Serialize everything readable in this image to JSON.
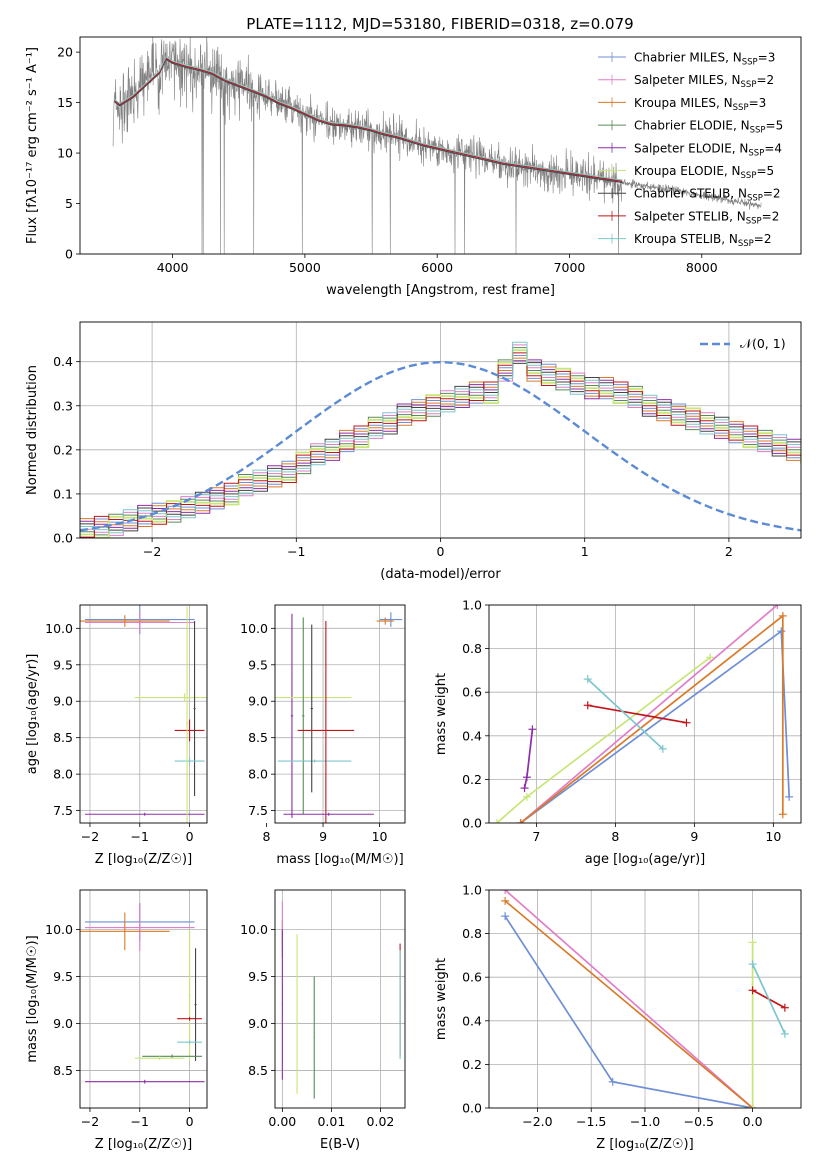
{
  "figure": {
    "title": "PLATE=1112, MJD=53180, FIBERID=0318, z=0.079"
  },
  "series_names": [
    {
      "name": "Chabrier MILES",
      "n": "3",
      "color": "#6f8fd4"
    },
    {
      "name": "Salpeter MILES",
      "n": "2",
      "color": "#e07ec9"
    },
    {
      "name": "Kroupa MILES",
      "n": "3",
      "color": "#d97a28"
    },
    {
      "name": "Chabrier ELODIE",
      "n": "5",
      "color": "#5a8a5a"
    },
    {
      "name": "Salpeter ELODIE",
      "n": "4",
      "color": "#8d2ea8"
    },
    {
      "name": "Kroupa ELODIE",
      "n": "5",
      "color": "#c8e678"
    },
    {
      "name": "Chabrier STELIB",
      "n": "2",
      "color": "#444444"
    },
    {
      "name": "Salpeter STELIB",
      "n": "2",
      "color": "#c0161c"
    },
    {
      "name": "Kroupa STELIB",
      "n": "2",
      "color": "#7cc6cc"
    }
  ],
  "chart_data": [
    {
      "id": "spectrum",
      "type": "line",
      "title": "PLATE=1112, MJD=53180, FIBERID=0318, z=0.079",
      "xlabel": "wavelength [Angstrom, rest frame]",
      "ylabel": "Flux [fλ10⁻¹⁷ erg cm⁻² s⁻¹ A⁻¹]",
      "xlim": [
        3300,
        8750
      ],
      "ylim": [
        0,
        21.5
      ],
      "xticks": [
        4000,
        5000,
        6000,
        7000,
        8000
      ],
      "yticks": [
        0,
        5,
        10,
        15,
        20
      ],
      "data_color": "#808080",
      "data_envelope": [
        [
          3550,
          14.8
        ],
        [
          3600,
          14.5
        ],
        [
          3700,
          15.8
        ],
        [
          3800,
          17.2
        ],
        [
          3900,
          18.2
        ],
        [
          4000,
          19.0
        ],
        [
          4100,
          18.4
        ],
        [
          4200,
          18.1
        ],
        [
          4300,
          17.6
        ],
        [
          4400,
          17.0
        ],
        [
          4500,
          16.5
        ],
        [
          4600,
          16.1
        ],
        [
          4700,
          15.6
        ],
        [
          4800,
          15.0
        ],
        [
          4900,
          14.4
        ],
        [
          5000,
          13.8
        ],
        [
          5100,
          13.2
        ],
        [
          5200,
          12.8
        ],
        [
          5300,
          12.7
        ],
        [
          5400,
          12.5
        ],
        [
          5500,
          12.2
        ],
        [
          5600,
          11.9
        ],
        [
          5700,
          11.7
        ],
        [
          5800,
          11.2
        ],
        [
          5900,
          10.8
        ],
        [
          6000,
          10.4
        ],
        [
          6100,
          10.1
        ],
        [
          6200,
          9.9
        ],
        [
          6300,
          9.6
        ],
        [
          6400,
          9.3
        ],
        [
          6500,
          9.0
        ],
        [
          6600,
          8.8
        ],
        [
          6700,
          8.6
        ],
        [
          6800,
          8.4
        ],
        [
          6900,
          8.1
        ],
        [
          7000,
          7.9
        ],
        [
          7100,
          7.7
        ],
        [
          7200,
          7.5
        ],
        [
          7300,
          7.3
        ],
        [
          7400,
          7.1
        ],
        [
          7500,
          6.9
        ],
        [
          7600,
          6.7
        ],
        [
          7700,
          6.5
        ],
        [
          7800,
          6.3
        ],
        [
          7900,
          6.0
        ],
        [
          8000,
          5.8
        ],
        [
          8100,
          5.6
        ],
        [
          8200,
          5.4
        ],
        [
          8300,
          5.1
        ],
        [
          8400,
          4.9
        ],
        [
          8450,
          4.8
        ]
      ],
      "model_fit": [
        [
          3560,
          15.2
        ],
        [
          3600,
          14.8
        ],
        [
          3700,
          15.6
        ],
        [
          3800,
          16.8
        ],
        [
          3900,
          18.0
        ],
        [
          3950,
          19.4
        ],
        [
          4000,
          19.0
        ],
        [
          4100,
          18.6
        ],
        [
          4200,
          18.3
        ],
        [
          4300,
          17.9
        ],
        [
          4400,
          17.2
        ],
        [
          4500,
          16.7
        ],
        [
          4600,
          16.2
        ],
        [
          4700,
          15.7
        ],
        [
          4800,
          15.0
        ],
        [
          4900,
          14.5
        ],
        [
          5000,
          13.9
        ],
        [
          5100,
          13.3
        ],
        [
          5200,
          12.9
        ],
        [
          5300,
          12.8
        ],
        [
          5400,
          12.6
        ],
        [
          5500,
          12.3
        ],
        [
          5600,
          11.9
        ],
        [
          5700,
          11.6
        ],
        [
          5800,
          11.2
        ],
        [
          5900,
          10.8
        ],
        [
          6000,
          10.5
        ],
        [
          6100,
          10.2
        ],
        [
          6200,
          9.9
        ],
        [
          6300,
          9.6
        ],
        [
          6400,
          9.3
        ],
        [
          6500,
          9.0
        ],
        [
          6600,
          8.8
        ],
        [
          6700,
          8.6
        ],
        [
          6800,
          8.4
        ],
        [
          6900,
          8.2
        ],
        [
          7000,
          8.0
        ],
        [
          7100,
          7.8
        ],
        [
          7200,
          7.6
        ],
        [
          7300,
          7.4
        ],
        [
          7400,
          7.2
        ]
      ],
      "legend_position": "right"
    },
    {
      "id": "residuals",
      "type": "histogram",
      "xlabel": "(data-model)/error",
      "ylabel": "Normed distribution",
      "xlim": [
        -2.5,
        2.5
      ],
      "ylim": [
        0,
        0.49
      ],
      "xticks": [
        -2,
        -1,
        0,
        1,
        2
      ],
      "yticks": [
        0.0,
        0.1,
        0.2,
        0.3,
        0.4
      ],
      "bin_edges_start": -2.5,
      "bin_width": 0.1,
      "bin_values": [
        0.02,
        0.025,
        0.03,
        0.04,
        0.05,
        0.055,
        0.06,
        0.07,
        0.08,
        0.09,
        0.1,
        0.12,
        0.13,
        0.14,
        0.15,
        0.17,
        0.19,
        0.2,
        0.22,
        0.23,
        0.25,
        0.26,
        0.28,
        0.29,
        0.3,
        0.31,
        0.32,
        0.33,
        0.33,
        0.38,
        0.42,
        0.38,
        0.37,
        0.36,
        0.35,
        0.34,
        0.34,
        0.33,
        0.32,
        0.3,
        0.29,
        0.28,
        0.27,
        0.26,
        0.25,
        0.24,
        0.23,
        0.22,
        0.21,
        0.2,
        0.19,
        0.17,
        0.16,
        0.15,
        0.14,
        0.12,
        0.11,
        0.1,
        0.09,
        0.08,
        0.07,
        0.06,
        0.05,
        0.05,
        0.04,
        0.03,
        0.03,
        0.03,
        0.02,
        0.02
      ],
      "gaussian_label": "𝒩(0, 1)",
      "gaussian_color": "#5b8bd6",
      "legend_position": "upper right"
    },
    {
      "id": "age_vs_z",
      "type": "errorbar",
      "xlabel": "Z [log₁₀(Z/Z☉)]",
      "ylabel": "age  [log₁₀(age/yr)]",
      "xlim": [
        -2.2,
        0.35
      ],
      "ylim": [
        7.33,
        10.32
      ],
      "xticks": [
        -2,
        -1,
        0
      ],
      "yticks": [
        7.5,
        8.0,
        8.5,
        9.0,
        9.5,
        10.0
      ]
    },
    {
      "id": "age_vs_mass",
      "type": "errorbar",
      "xlabel": "mass [log₁₀(M/M☉)]",
      "ylabel": "",
      "xlim": [
        8.15,
        10.45
      ],
      "ylim": [
        7.33,
        10.32
      ],
      "xticks": [
        8,
        9,
        10
      ],
      "yticks": [
        7.5,
        8.0,
        8.5,
        9.0,
        9.5,
        10.0
      ]
    },
    {
      "id": "weight_vs_age",
      "type": "line",
      "xlabel": "age  [log₁₀(age/yr)]",
      "ylabel": "mass weight",
      "xlim": [
        6.4,
        10.35
      ],
      "ylim": [
        0,
        1.0
      ],
      "xticks": [
        7,
        8,
        9,
        10
      ],
      "yticks": [
        0.0,
        0.2,
        0.4,
        0.6,
        0.8,
        1.0
      ],
      "series": [
        {
          "name": "Chabrier MILES",
          "x": [
            6.8,
            10.1,
            10.2
          ],
          "y": [
            0.0,
            0.88,
            0.12
          ]
        },
        {
          "name": "Salpeter MILES",
          "x": [
            6.8,
            10.05
          ],
          "y": [
            0.0,
            1.0
          ]
        },
        {
          "name": "Kroupa MILES",
          "x": [
            6.8,
            10.12,
            10.12
          ],
          "y": [
            0.0,
            0.95,
            0.04
          ]
        },
        {
          "name": "Salpeter ELODIE",
          "x": [
            6.85,
            6.88,
            6.95
          ],
          "y": [
            0.16,
            0.21,
            0.43
          ]
        },
        {
          "name": "Kroupa ELODIE",
          "x": [
            6.5,
            6.88,
            9.2
          ],
          "y": [
            0.0,
            0.12,
            0.76
          ]
        },
        {
          "name": "Salpeter STELIB",
          "x": [
            7.65,
            8.9
          ],
          "y": [
            0.54,
            0.46
          ]
        },
        {
          "name": "Kroupa STELIB",
          "x": [
            7.65,
            8.6
          ],
          "y": [
            0.66,
            0.34
          ]
        }
      ]
    },
    {
      "id": "mass_vs_z",
      "type": "errorbar",
      "xlabel": "Z [log₁₀(Z/Z☉)]",
      "ylabel": "mass [log₁₀(M/M☉)]",
      "xlim": [
        -2.2,
        0.35
      ],
      "ylim": [
        8.1,
        10.42
      ],
      "xticks": [
        -2,
        -1,
        0
      ],
      "yticks": [
        8.5,
        9.0,
        9.5,
        10.0
      ]
    },
    {
      "id": "mass_vs_ebv",
      "type": "errorbar",
      "xlabel": "E(B-V)",
      "ylabel": "",
      "xlim": [
        -0.0015,
        0.025
      ],
      "ylim": [
        8.1,
        10.42
      ],
      "xticks": [
        0.0,
        0.01,
        0.02
      ],
      "xticklabels": [
        "0.00",
        "0.01",
        "0.02"
      ],
      "yticks": [
        8.5,
        9.0,
        9.5,
        10.0
      ]
    },
    {
      "id": "weight_vs_z",
      "type": "line",
      "xlabel": "Z [log₁₀(Z/Z☉)]",
      "ylabel": "mass weight",
      "xlim": [
        -2.45,
        0.45
      ],
      "ylim": [
        0,
        1.0
      ],
      "xticks": [
        -2.0,
        -1.5,
        -1.0,
        -0.5,
        0.0
      ],
      "xticklabels": [
        "−2.0",
        "−1.5",
        "−1.0",
        "−0.5",
        "0.0"
      ],
      "yticks": [
        0.0,
        0.2,
        0.4,
        0.6,
        0.8,
        1.0
      ],
      "series": [
        {
          "name": "Chabrier MILES",
          "x": [
            -2.3,
            -1.3,
            0.0
          ],
          "y": [
            0.88,
            0.12,
            0.0
          ]
        },
        {
          "name": "Salpeter MILES",
          "x": [
            -2.3,
            0.0
          ],
          "y": [
            1.0,
            0.0
          ]
        },
        {
          "name": "Kroupa MILES",
          "x": [
            -2.3,
            0.0
          ],
          "y": [
            0.95,
            0.0
          ]
        },
        {
          "name": "Kroupa ELODIE",
          "x": [
            0.0,
            0.0
          ],
          "y": [
            0.0,
            0.76
          ]
        },
        {
          "name": "Salpeter STELIB",
          "x": [
            0.0,
            0.3
          ],
          "y": [
            0.54,
            0.46
          ]
        },
        {
          "name": "Kroupa STELIB",
          "x": [
            0.0,
            0.3
          ],
          "y": [
            0.66,
            0.34
          ]
        }
      ]
    }
  ]
}
